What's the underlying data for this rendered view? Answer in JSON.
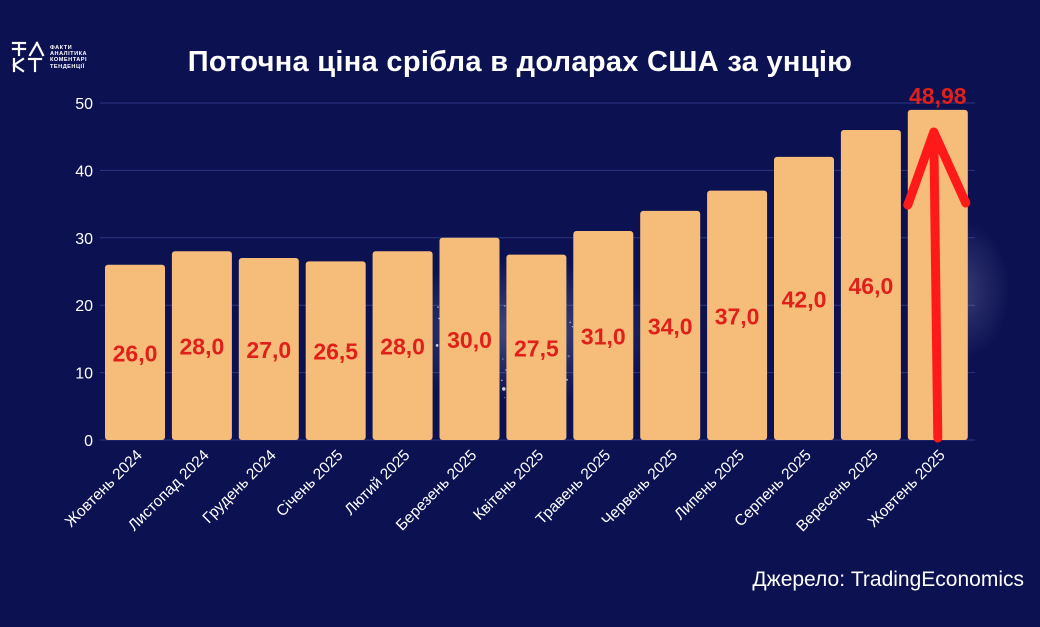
{
  "logo": {
    "lines": [
      "ФАКТИ",
      "АНАЛІТИКА",
      "КОМЕНТАРІ",
      "ТЕНДЕНЦІЇ"
    ]
  },
  "source": "Джерело: TradingEconomics",
  "colors": {
    "background": "#0c1152",
    "bar": "#f5bd79",
    "value_label": "#e0201a",
    "arrow": "#ff1a1a",
    "grid": "#2b3580",
    "text": "#ffffff"
  },
  "chart_data": {
    "type": "bar",
    "title": "Поточна ціна срібла в доларах США за унцію",
    "xlabel": "",
    "ylabel": "",
    "ylim": [
      0,
      50
    ],
    "yticks": [
      0,
      10,
      20,
      30,
      40,
      50
    ],
    "grid": true,
    "categories": [
      "Жовтень 2024",
      "Листопад 2024",
      "Грудень 2024",
      "Січень 2025",
      "Лютий 2025",
      "Березень 2025",
      "Квітень 2025",
      "Травень 2025",
      "Червень 2025",
      "Липень 2025",
      "Серпень 2025",
      "Вересень 2025",
      "Жовтень 2025"
    ],
    "values": [
      26.0,
      28.0,
      27.0,
      26.5,
      28.0,
      30.0,
      27.5,
      31.0,
      34.0,
      37.0,
      42.0,
      46.0,
      48.98
    ],
    "value_labels": [
      "26,0",
      "28,0",
      "27,0",
      "26,5",
      "28,0",
      "30,0",
      "27,5",
      "31,0",
      "34,0",
      "37,0",
      "42,0",
      "46,0",
      "48,98"
    ],
    "annotation": "upward arrow on last bar"
  }
}
